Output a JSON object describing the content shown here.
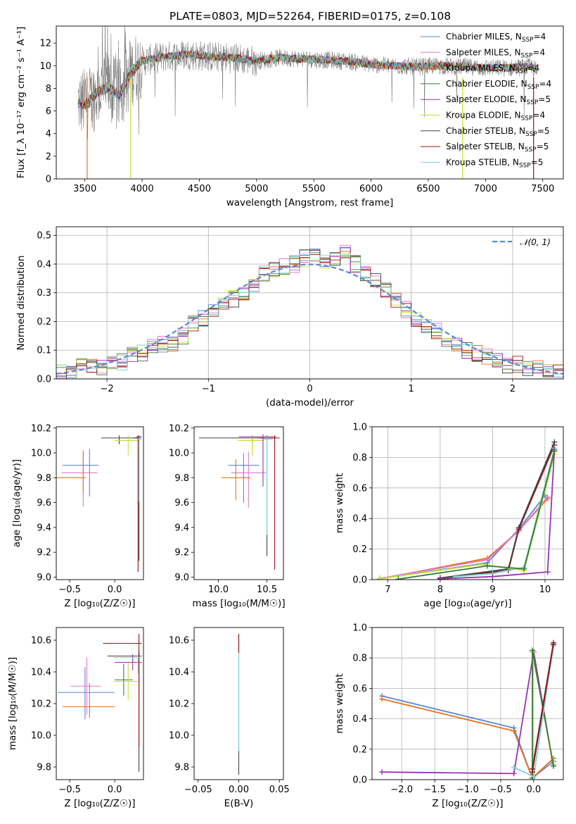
{
  "title": "PLATE=0803, MJD=52264, FIBERID=0175, z=0.108",
  "chart_data": [
    {
      "id": "spectrum",
      "type": "line",
      "xlabel": "wavelength [Angstrom, rest frame]",
      "ylabel": "Flux [f_λ 10⁻¹⁷ erg cm⁻² s⁻¹ A⁻¹]",
      "xlim": [
        3250,
        7680
      ],
      "ylim": [
        0,
        13.5
      ],
      "xticks": [
        3500,
        4000,
        4500,
        5000,
        5500,
        6000,
        6500,
        7000,
        7500
      ],
      "yticks": [
        0,
        2,
        4,
        6,
        8,
        10,
        12
      ],
      "legend_position": "top-right",
      "observed_color": "#808080",
      "continuum": {
        "x": [
          3440,
          3520,
          3600,
          3700,
          3800,
          3900,
          4000,
          4200,
          4400,
          4600,
          4800,
          5000,
          5200,
          5400,
          5600,
          5800,
          6000,
          6200,
          6400,
          6600,
          6800,
          7000,
          7200,
          7400,
          7450
        ],
        "y": [
          6.8,
          6.6,
          7.6,
          8.1,
          7.4,
          9.4,
          10.4,
          10.8,
          11.0,
          10.8,
          10.7,
          10.4,
          10.7,
          10.6,
          10.5,
          10.4,
          10.1,
          10.0,
          9.9,
          10.0,
          9.9,
          9.8,
          9.8,
          9.9,
          9.6
        ]
      }
    },
    {
      "id": "residuals",
      "type": "line",
      "xlabel": "(data-model)/error",
      "ylabel": "Normed distribution",
      "xlim": [
        -2.5,
        2.5
      ],
      "ylim": [
        0,
        0.53
      ],
      "xticks": [
        -2,
        -1,
        0,
        1,
        2
      ],
      "yticks": [
        0.0,
        0.1,
        0.2,
        0.3,
        0.4,
        0.5
      ],
      "grid": true,
      "legend_position": "top-right",
      "legend_label": "𝒩(0, 1)",
      "hist_ref": {
        "bins": [
          -2.5,
          -2.4,
          -2.3,
          -2.2,
          -2.1,
          -2.0,
          -1.9,
          -1.8,
          -1.7,
          -1.6,
          -1.5,
          -1.4,
          -1.3,
          -1.2,
          -1.1,
          -1.0,
          -0.9,
          -0.8,
          -0.7,
          -0.6,
          -0.5,
          -0.4,
          -0.3,
          -0.2,
          -0.1,
          0.0,
          0.1,
          0.2,
          0.3,
          0.4,
          0.5,
          0.6,
          0.7,
          0.8,
          0.9,
          1.0,
          1.1,
          1.2,
          1.3,
          1.4,
          1.5,
          1.6,
          1.7,
          1.8,
          1.9,
          2.0,
          2.1,
          2.2,
          2.3,
          2.4
        ],
        "values": [
          0.02,
          0.03,
          0.04,
          0.05,
          0.04,
          0.05,
          0.06,
          0.08,
          0.09,
          0.11,
          0.12,
          0.12,
          0.15,
          0.19,
          0.21,
          0.24,
          0.26,
          0.28,
          0.3,
          0.33,
          0.37,
          0.38,
          0.39,
          0.4,
          0.42,
          0.43,
          0.41,
          0.42,
          0.44,
          0.4,
          0.37,
          0.35,
          0.31,
          0.27,
          0.24,
          0.21,
          0.19,
          0.17,
          0.13,
          0.12,
          0.1,
          0.09,
          0.08,
          0.07,
          0.05,
          0.05,
          0.04,
          0.04,
          0.03,
          0.03
        ]
      }
    },
    {
      "id": "age-vs-Z",
      "type": "scatter",
      "xlabel": "Z [log₁₀(Z/Z☉)]",
      "ylabel": "age  [log₁₀(age/yr)]",
      "xlim": [
        -0.65,
        0.32
      ],
      "ylim": [
        8.98,
        10.21
      ],
      "xticks": [
        -0.5,
        0.0
      ],
      "yticks": [
        9.0,
        9.2,
        9.4,
        9.6,
        9.8,
        10.0,
        10.2
      ],
      "points": [
        {
          "x": -0.28,
          "y": 9.9,
          "xe": [
            0.3,
            0.1
          ],
          "ye": [
            0.25,
            0.13
          ],
          "c": "#5a87d6"
        },
        {
          "x": -0.35,
          "y": 9.84,
          "xe": [
            0.24,
            0.16
          ],
          "ye": [
            0.27,
            0.18
          ],
          "c": "#e377c2"
        },
        {
          "x": -0.35,
          "y": 9.8,
          "xe": [
            0.3,
            0.03
          ],
          "ye": [
            0.12,
            0.22
          ],
          "c": "#e9711e"
        },
        {
          "x": 0.05,
          "y": 10.12,
          "xe": [
            0.2,
            0.24
          ],
          "ye": [
            0.05,
            0.02
          ],
          "c": "#444444"
        },
        {
          "x": 0.15,
          "y": 10.1,
          "xe": [
            0.15,
            0.12
          ],
          "ye": [
            0.12,
            0.04
          ],
          "c": "#bde033"
        },
        {
          "x": 0.27,
          "y": 10.13,
          "xe": [
            0.03,
            0.03
          ],
          "ye": [
            1.0,
            0.01
          ],
          "c": "#444444"
        },
        {
          "x": 0.26,
          "y": 10.12,
          "xe": [
            0.05,
            0.02
          ],
          "ye": [
            1.08,
            0.02
          ],
          "c": "#a01010"
        },
        {
          "x": 0.27,
          "y": 10.11,
          "xe": [
            0.02,
            0.03
          ],
          "ye": [
            0.5,
            0.02
          ],
          "c": "#7ad3d8"
        }
      ]
    },
    {
      "id": "age-vs-mass",
      "type": "scatter",
      "xlabel": "mass [log₁₀(M/M☉)]",
      "ylabel": "",
      "xlim": [
        9.75,
        10.67
      ],
      "ylim": [
        8.98,
        10.21
      ],
      "xticks": [
        10.0,
        10.5
      ],
      "yticks": [
        9.0,
        9.2,
        9.4,
        9.6,
        9.8,
        10.0,
        10.2
      ],
      "points": [
        {
          "x": 10.26,
          "y": 9.9,
          "xe": [
            0.16,
            0.16
          ],
          "ye": [
            0.3,
            0.1
          ],
          "c": "#5a87d6"
        },
        {
          "x": 10.31,
          "y": 9.84,
          "xe": [
            0.18,
            0.18
          ],
          "ye": [
            0.28,
            0.17
          ],
          "c": "#e377c2"
        },
        {
          "x": 10.18,
          "y": 9.8,
          "xe": [
            0.15,
            0.15
          ],
          "ye": [
            0.18,
            0.15
          ],
          "c": "#e9711e"
        },
        {
          "x": 10.35,
          "y": 10.12,
          "xe": [
            0.55,
            0.1
          ],
          "ye": [
            0.04,
            0.02
          ],
          "c": "#444444"
        },
        {
          "x": 10.35,
          "y": 10.1,
          "xe": [
            0.15,
            0.12
          ],
          "ye": [
            0.12,
            0.04
          ],
          "c": "#bde033"
        },
        {
          "x": 10.46,
          "y": 10.13,
          "xe": [
            0.25,
            0.13
          ],
          "ye": [
            0.4,
            0.02
          ],
          "c": "#9932b4"
        },
        {
          "x": 10.5,
          "y": 10.12,
          "xe": [
            0.1,
            0.1
          ],
          "ye": [
            0.95,
            0.02
          ],
          "c": "#444444"
        },
        {
          "x": 10.58,
          "y": 10.12,
          "xe": [
            0.15,
            0.05
          ],
          "ye": [
            1.06,
            0.02
          ],
          "c": "#a01010"
        },
        {
          "x": 10.5,
          "y": 10.11,
          "xe": [
            0.04,
            0.06
          ],
          "ye": [
            0.77,
            0.02
          ],
          "c": "#7ad3d8"
        }
      ]
    },
    {
      "id": "massweight-vs-age",
      "type": "line",
      "xlabel": "age  [log₁₀(age/yr)]",
      "ylabel": "mass weight",
      "xlim": [
        6.7,
        10.35
      ],
      "ylim": [
        0,
        1.0
      ],
      "xticks": [
        7,
        8,
        9,
        10
      ],
      "yticks": [
        0.0,
        0.2,
        0.4,
        0.6,
        0.8,
        1.0
      ],
      "grid": true,
      "series": [
        {
          "c": "#5a87d6",
          "x": [
            6.85,
            8.9,
            9.5,
            10.0
          ],
          "y": [
            0.005,
            0.11,
            0.33,
            0.55
          ]
        },
        {
          "c": "#e9711e",
          "x": [
            6.85,
            8.9,
            9.5,
            10.05
          ],
          "y": [
            0.005,
            0.14,
            0.32,
            0.53
          ]
        },
        {
          "c": "#e377c2",
          "x": [
            6.85,
            8.9,
            9.5,
            10.05
          ],
          "y": [
            0.008,
            0.13,
            0.32,
            0.54
          ]
        },
        {
          "c": "#a01010",
          "x": [
            8.0,
            9.3,
            9.5,
            10.18
          ],
          "y": [
            0.01,
            0.06,
            0.33,
            0.88
          ]
        },
        {
          "c": "#444444",
          "x": [
            8.0,
            9.3,
            9.5,
            10.18
          ],
          "y": [
            0.01,
            0.07,
            0.34,
            0.9
          ]
        },
        {
          "c": "#7ad3d8",
          "x": [
            8.3,
            9.0,
            9.6,
            10.18
          ],
          "y": [
            0.02,
            0.04,
            0.08,
            0.86
          ]
        },
        {
          "c": "#bde033",
          "x": [
            6.85,
            8.8,
            9.6,
            10.18
          ],
          "y": [
            0.006,
            0.1,
            0.06,
            0.82
          ]
        },
        {
          "c": "#9932b4",
          "x": [
            8.0,
            9.0,
            10.05,
            10.18
          ],
          "y": [
            0.005,
            0.02,
            0.05,
            0.85
          ]
        },
        {
          "c": "#3a7a3a",
          "x": [
            7.2,
            8.9,
            9.6,
            10.18
          ],
          "y": [
            0.003,
            0.09,
            0.07,
            0.84
          ]
        }
      ]
    },
    {
      "id": "mass-vs-Z",
      "type": "scatter",
      "xlabel": "Z [log₁₀(Z/Z☉)]",
      "ylabel": "mass [log₁₀(M/M☉)]",
      "xlim": [
        -0.65,
        0.32
      ],
      "ylim": [
        9.72,
        10.68
      ],
      "xticks": [
        -0.5,
        0.0
      ],
      "yticks": [
        9.8,
        10.0,
        10.2,
        10.4,
        10.6
      ],
      "points": [
        {
          "x": -0.33,
          "y": 10.27,
          "xe": [
            0.3,
            0.33
          ],
          "ye": [
            0.17,
            0.16
          ],
          "c": "#5a87d6"
        },
        {
          "x": -0.31,
          "y": 10.31,
          "xe": [
            0.18,
            0.16
          ],
          "ye": [
            0.18,
            0.18
          ],
          "c": "#e377c2"
        },
        {
          "x": -0.28,
          "y": 10.18,
          "xe": [
            0.3,
            0.28
          ],
          "ye": [
            0.07,
            0.15
          ],
          "c": "#e9711e"
        },
        {
          "x": 0.1,
          "y": 10.35,
          "xe": [
            0.1,
            0.1
          ],
          "ye": [
            0.1,
            0.1
          ],
          "c": "#3a7a3a"
        },
        {
          "x": 0.15,
          "y": 10.34,
          "xe": [
            0.15,
            0.12
          ],
          "ye": [
            0.12,
            0.12
          ],
          "c": "#bde033"
        },
        {
          "x": 0.2,
          "y": 10.46,
          "xe": [
            0.2,
            0.1
          ],
          "ye": [
            0.05,
            0.05
          ],
          "c": "#9932b4"
        },
        {
          "x": 0.27,
          "y": 10.5,
          "xe": [
            0.35,
            0.03
          ],
          "ye": [
            0.73,
            0.03
          ],
          "c": "#444444"
        },
        {
          "x": 0.27,
          "y": 10.58,
          "xe": [
            0.4,
            0.03
          ],
          "ye": [
            0.65,
            0.06
          ],
          "c": "#a01010"
        },
        {
          "x": 0.26,
          "y": 10.49,
          "xe": [
            0.27,
            0.03
          ],
          "ye": [
            0.1,
            0.03
          ],
          "c": "#7ad3d8"
        }
      ]
    },
    {
      "id": "mass-vs-ebv",
      "type": "scatter",
      "xlabel": "E(B-V)",
      "ylabel": "",
      "xlim": [
        -0.055,
        0.055
      ],
      "ylim": [
        9.72,
        10.68
      ],
      "xticks": [
        -0.05,
        0.0,
        0.05
      ],
      "yticks": [
        9.8,
        10.0,
        10.2,
        10.4,
        10.6
      ],
      "points": [
        {
          "x": 0.0,
          "y": 10.55,
          "ye": [
            0.8,
            0.09
          ],
          "c": "#444444"
        },
        {
          "x": 0.0,
          "y": 10.6,
          "ye": [
            0.08,
            0.04
          ],
          "c": "#a01010"
        },
        {
          "x": 0.0,
          "y": 10.3,
          "ye": [
            0.4,
            0.22
          ],
          "c": "#7ad3d8"
        }
      ]
    },
    {
      "id": "massweight-vs-Z",
      "type": "line",
      "xlabel": "Z [log₁₀(Z/Z☉)]",
      "ylabel": "mass weight",
      "xlim": [
        -2.45,
        0.45
      ],
      "ylim": [
        0,
        1.0
      ],
      "xticks": [
        -2.0,
        -1.5,
        -1.0,
        -0.5,
        0.0
      ],
      "yticks": [
        0.0,
        0.2,
        0.4,
        0.6,
        0.8,
        1.0
      ],
      "grid": true,
      "series": [
        {
          "c": "#5a87d6",
          "x": [
            -2.3,
            -0.3,
            -0.02,
            0.3
          ],
          "y": [
            0.55,
            0.34,
            0.01,
            0.12
          ]
        },
        {
          "c": "#e9711e",
          "x": [
            -2.3,
            -0.3,
            -0.02,
            0.3
          ],
          "y": [
            0.53,
            0.32,
            0.01,
            0.14
          ]
        },
        {
          "c": "#9932b4",
          "x": [
            -2.3,
            -0.3,
            0.0,
            0.3
          ],
          "y": [
            0.05,
            0.04,
            0.84,
            0.09
          ]
        },
        {
          "c": "#bde033",
          "x": [
            -0.02,
            -0.02,
            0.3
          ],
          "y": [
            0.01,
            0.84,
            0.1
          ]
        },
        {
          "c": "#3a7a3a",
          "x": [
            -0.02,
            -0.02,
            0.3
          ],
          "y": [
            0.01,
            0.85,
            0.09
          ]
        },
        {
          "c": "#7ad3d8",
          "x": [
            -0.3,
            0.0,
            0.3
          ],
          "y": [
            0.08,
            0.02,
            0.88
          ]
        },
        {
          "c": "#444444",
          "x": [
            -0.02,
            0.3
          ],
          "y": [
            0.07,
            0.9
          ]
        },
        {
          "c": "#a01010",
          "x": [
            -0.02,
            0.3
          ],
          "y": [
            0.05,
            0.89
          ]
        }
      ]
    }
  ],
  "legend_spectrum": [
    {
      "label": "Chabrier MILES, N",
      "sub": "SSP",
      "suffix": "=4",
      "c": "#5a87d6"
    },
    {
      "label": "Salpeter MILES, N",
      "sub": "SSP",
      "suffix": "=4",
      "c": "#e377c2"
    },
    {
      "label": "Kroupa MILES, N",
      "sub": "SSP",
      "suffix": "=4",
      "c": "#e9711e"
    },
    {
      "label": "Chabrier ELODIE, N",
      "sub": "SSP",
      "suffix": "=4",
      "c": "#3a7a3a"
    },
    {
      "label": "Salpeter ELODIE, N",
      "sub": "SSP",
      "suffix": "=5",
      "c": "#9932b4"
    },
    {
      "label": "Kroupa ELODIE, N",
      "sub": "SSP",
      "suffix": "=4",
      "c": "#bde033"
    },
    {
      "label": "Chabrier STELIB, N",
      "sub": "SSP",
      "suffix": "=5",
      "c": "#444444"
    },
    {
      "label": "Salpeter STELIB, N",
      "sub": "SSP",
      "suffix": "=5",
      "c": "#a01010"
    },
    {
      "label": "Kroupa STELIB, N",
      "sub": "SSP",
      "suffix": "=5",
      "c": "#7ad3d8"
    }
  ],
  "normal_line_color": "#5a87d6"
}
